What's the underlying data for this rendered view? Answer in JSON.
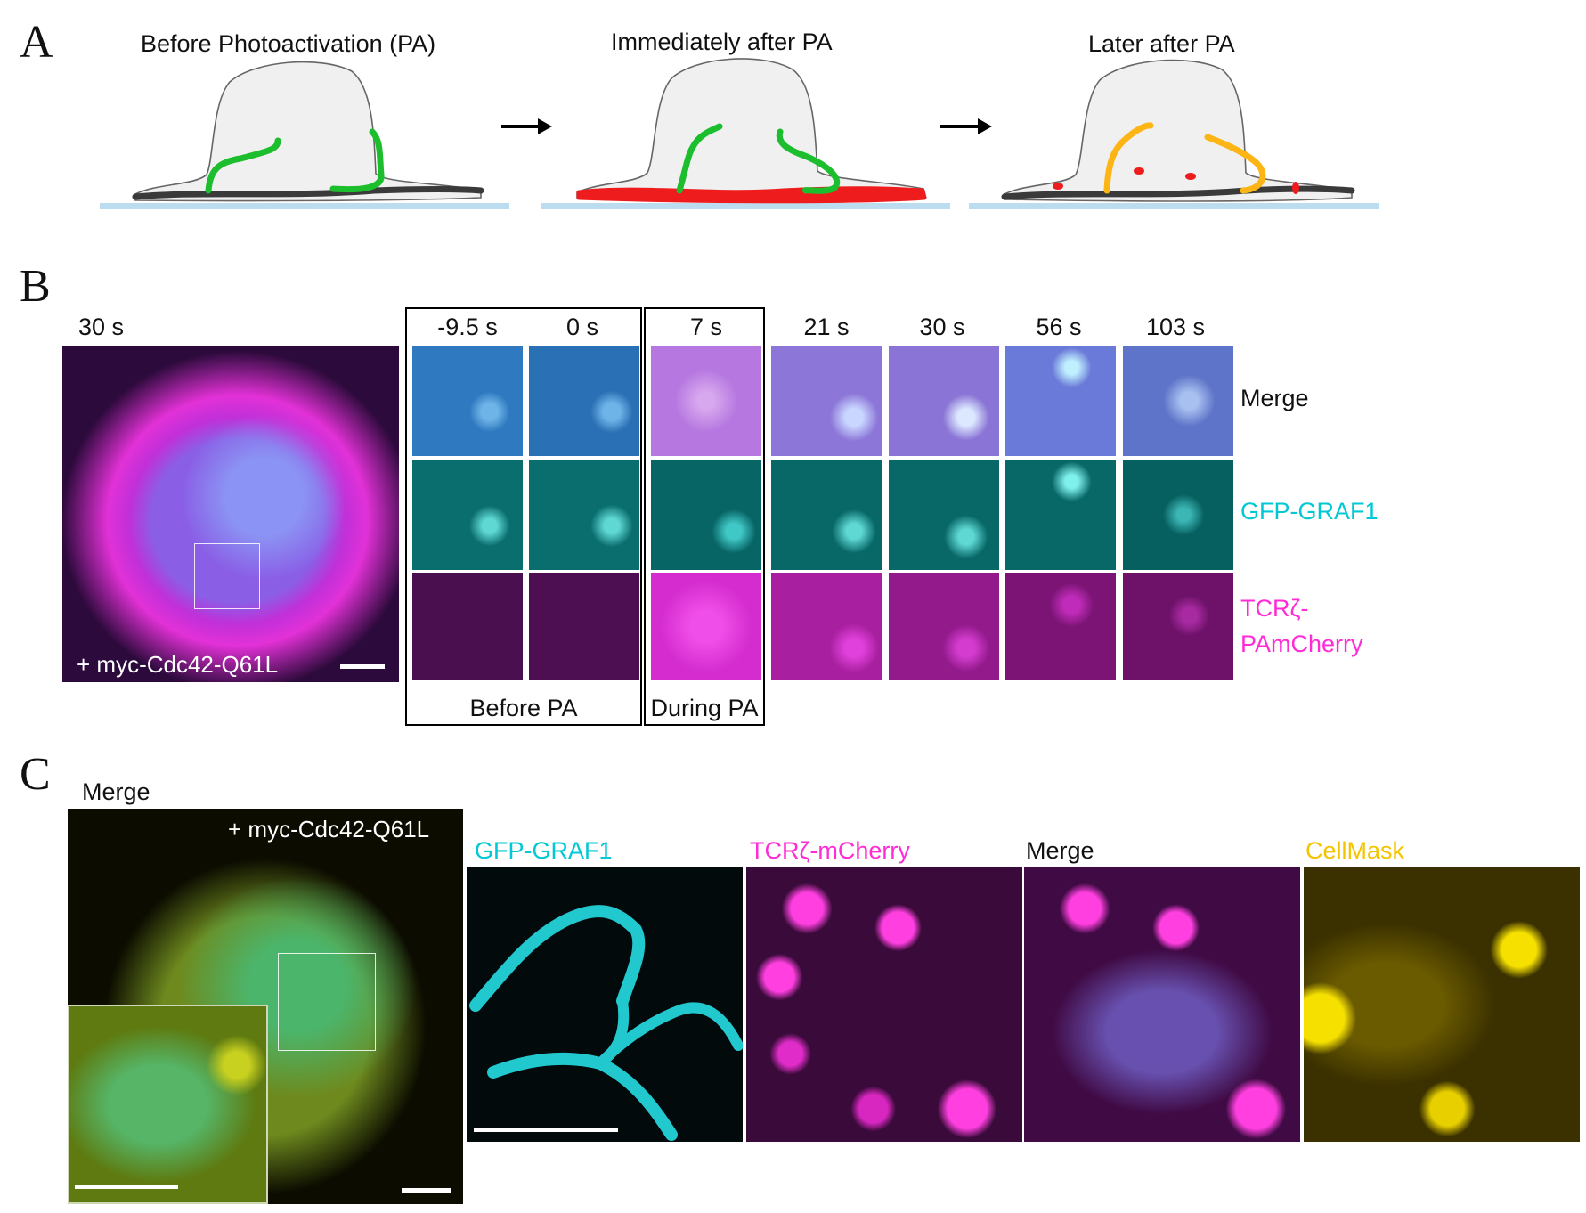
{
  "colors": {
    "cytoplasm_gray": "#f0f0f0",
    "membrane_dark": "#3a3a3a",
    "coverslip_blue": "#bcdcef",
    "graf1_green": "#1dbe2e",
    "tcr_red": "#ee1c1c",
    "endocytic_orange": "#fcb514",
    "merge_blue": "#5a7fd8",
    "graf1_cyan": "#00c8d4",
    "tcr_magenta": "#ff2bd6",
    "cellmask_yellow": "#f5e000"
  },
  "panel_a": {
    "letter": "A",
    "stages": [
      {
        "label": "Before Photoactivation (PA)"
      },
      {
        "label": "Immediately after PA"
      },
      {
        "label": "Later after PA"
      }
    ],
    "arrow_icon": "right-arrow-icon"
  },
  "panel_b": {
    "letter": "B",
    "overview_time": "30 s",
    "overview_label": "+ myc-Cdc42-Q61L",
    "times": [
      "-9.5 s",
      "0 s",
      "7 s",
      "21 s",
      "30 s",
      "56 s",
      "103 s"
    ],
    "rows": [
      {
        "label": "Merge",
        "color": "#111111"
      },
      {
        "label": "GFP-GRAF1",
        "color": "#00c8d4"
      },
      {
        "label_line1": "TCRζ-",
        "label_line2": "PAmCherry",
        "color": "#ff2bd6"
      }
    ],
    "before_pa": "Before PA",
    "during_pa": "During PA"
  },
  "panel_c": {
    "letter": "C",
    "overview_title": "Merge",
    "overview_label": "+ myc-Cdc42-Q61L",
    "channels": [
      {
        "label": "GFP-GRAF1",
        "color": "#00c8d4"
      },
      {
        "label": "TCRζ-mCherry",
        "color": "#ff2bd6"
      },
      {
        "label": "Merge",
        "color": "#111111"
      },
      {
        "label": "CellMask",
        "color": "#f5c400"
      }
    ]
  }
}
